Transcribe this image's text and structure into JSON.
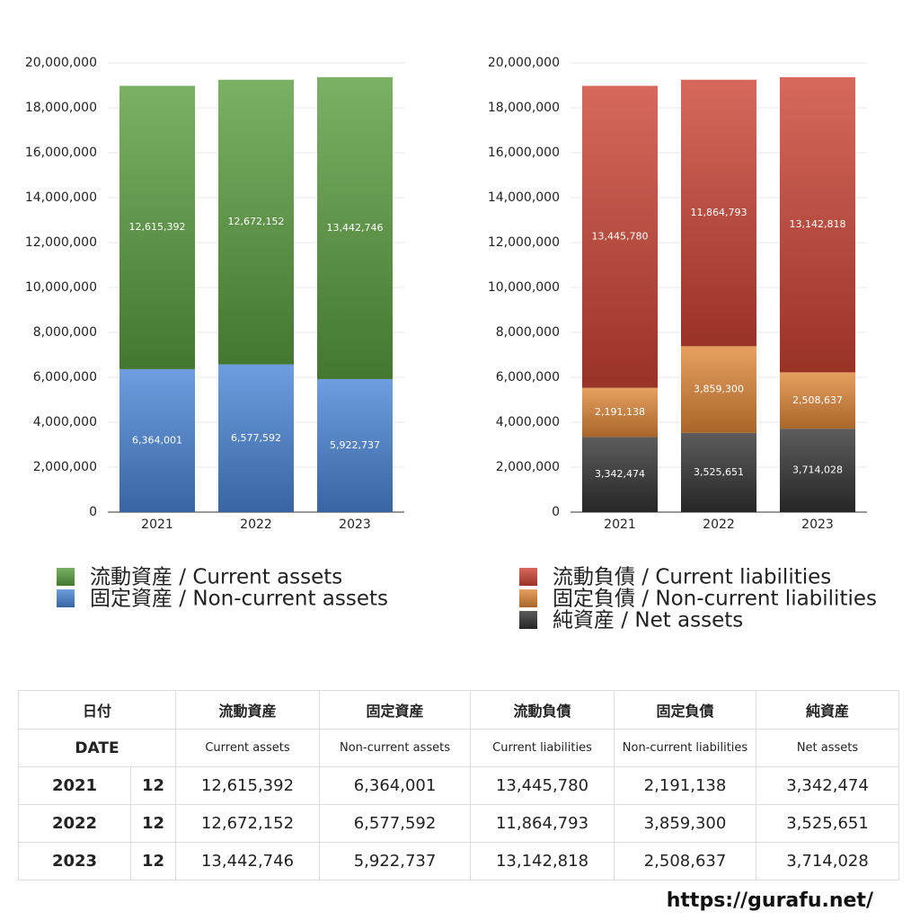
{
  "chart_data": [
    {
      "type": "bar",
      "stacked": true,
      "grid": true,
      "categories": [
        "2021",
        "2022",
        "2023"
      ],
      "ylim": [
        0,
        20000000
      ],
      "yticks": [
        0,
        {
          "value": 2000000,
          "label": "2,000,000"
        },
        {
          "value": 4000000,
          "label": "4,000,000"
        },
        {
          "value": 6000000,
          "label": "6,000,000"
        },
        {
          "value": 8000000,
          "label": "8,000,000"
        },
        {
          "value": 10000000,
          "label": "10,000,000"
        },
        {
          "value": 12000000,
          "label": "12,000,000"
        },
        {
          "value": 14000000,
          "label": "14,000,000"
        },
        {
          "value": 16000000,
          "label": "16,000,000"
        },
        {
          "value": 18000000,
          "label": "18,000,000"
        },
        {
          "value": 20000000,
          "label": "20,000,000"
        }
      ],
      "series": [
        {
          "name": "流動資産 / Current assets",
          "color": "#5a9e3e",
          "values": [
            12615392,
            12672152,
            13442746
          ],
          "value_labels": [
            "12,615,392",
            "12,672,152",
            "13,442,746"
          ]
        },
        {
          "name": "固定資産 / Non-current assets",
          "color": "#4a86d8",
          "values": [
            6364001,
            6577592,
            5922737
          ],
          "value_labels": [
            "6,364,001",
            "6,577,592",
            "5,922,737"
          ]
        }
      ]
    },
    {
      "type": "bar",
      "stacked": true,
      "grid": true,
      "categories": [
        "2021",
        "2022",
        "2023"
      ],
      "ylim": [
        0,
        20000000
      ],
      "yticks": [
        0,
        {
          "value": 2000000,
          "label": "2,000,000"
        },
        {
          "value": 4000000,
          "label": "4,000,000"
        },
        {
          "value": 6000000,
          "label": "6,000,000"
        },
        {
          "value": 8000000,
          "label": "8,000,000"
        },
        {
          "value": 10000000,
          "label": "10,000,000"
        },
        {
          "value": 12000000,
          "label": "12,000,000"
        },
        {
          "value": 14000000,
          "label": "14,000,000"
        },
        {
          "value": 16000000,
          "label": "16,000,000"
        },
        {
          "value": 18000000,
          "label": "18,000,000"
        },
        {
          "value": 20000000,
          "label": "20,000,000"
        }
      ],
      "series": [
        {
          "name": "流動負債 / Current liabilities",
          "color": "#cc4433",
          "values": [
            13445780,
            11864793,
            13142818
          ],
          "value_labels": [
            "13,445,780",
            "11,864,793",
            "13,142,818"
          ]
        },
        {
          "name": "固定負債 / Non-current liabilities",
          "color": "#e08838",
          "values": [
            2191138,
            3859300,
            2508637
          ],
          "value_labels": [
            "2,191,138",
            "3,859,300",
            "2,508,637"
          ]
        },
        {
          "name": "純資産 / Net assets",
          "color": "#333333",
          "values": [
            3342474,
            3525651,
            3714028
          ],
          "value_labels": [
            "3,342,474",
            "3,525,651",
            "3,714,028"
          ]
        }
      ]
    }
  ],
  "table": {
    "header": [
      [
        "日付",
        "流動資産",
        "固定資産",
        "流動負債",
        "固定負債",
        "純資産"
      ],
      [
        "DATE",
        "Current assets",
        "Non-current assets",
        "Current liabilities",
        "Non-current liabilities",
        "Net assets"
      ]
    ],
    "rows": [
      [
        "2021",
        "12",
        "12,615,392",
        "6,364,001",
        "13,445,780",
        "2,191,138",
        "3,342,474"
      ],
      [
        "2022",
        "12",
        "12,672,152",
        "6,577,592",
        "11,864,793",
        "3,859,300",
        "3,525,651"
      ],
      [
        "2023",
        "12",
        "13,442,746",
        "5,922,737",
        "13,142,818",
        "2,508,637",
        "3,714,028"
      ]
    ]
  },
  "footer": "https://gurafu.net/"
}
